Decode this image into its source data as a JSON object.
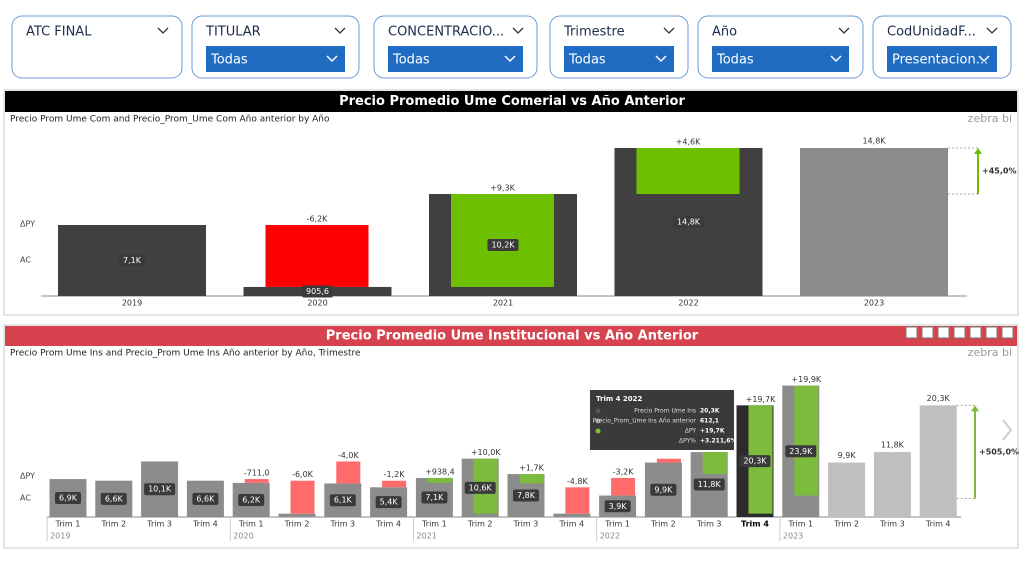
{
  "slicers": [
    {
      "title": "ATC FINAL"
    },
    {
      "title": "TITULAR",
      "value": "Todas"
    },
    {
      "title": "CONCENTRACIO...",
      "value": "Todas"
    },
    {
      "title": "Trimestre",
      "value": "Todas"
    },
    {
      "title": "Año",
      "value": "Todas"
    },
    {
      "title": "CodUnidadF...",
      "value": "Presentacion..."
    }
  ],
  "chart_data": [
    {
      "type": "variance-column",
      "title": "Precio Promedio Ume Comerial vs Año Anterior",
      "subtitle": "Precio Prom Ume Com and Precio_Prom_Ume Com Año anterior by Año",
      "logo": "zebra bi",
      "header_color": "#000000",
      "row_labels": [
        "ΔPY",
        "AC"
      ],
      "categories": [
        "2019",
        "2020",
        "2021",
        "2022",
        "2023"
      ],
      "values": [
        7100,
        905.6,
        10200,
        14800,
        14800
      ],
      "value_labels": [
        "7,1K",
        "905,6",
        "10,2K",
        "14,8K",
        "14,8K"
      ],
      "bar_styles": [
        "ac",
        "ac",
        "ac",
        "ac",
        "plan"
      ],
      "deltas": [
        null,
        -6200,
        9300,
        4600,
        null
      ],
      "delta_labels": [
        null,
        "-6,2K",
        "+9,3K",
        "+4,6K",
        null
      ],
      "total_variance": 45.0,
      "total_variance_label": "+45,0%",
      "colors": {
        "ac": "#404040",
        "highlight": "#262626",
        "plan": "#8c8c8c",
        "positive": "#6cc000",
        "negative": "#ff0000"
      }
    },
    {
      "type": "variance-column",
      "title": "Precio Promedio Ume Institucional vs Año Anterior",
      "subtitle": "Precio Prom Ume Ins and Precio_Prom Ume Ins Año anterior by Año, Trimestre",
      "logo": "zebra bi",
      "header_color": "#d6434f",
      "row_labels": [
        "ΔPY",
        "AC"
      ],
      "groups": [
        "2019",
        "2020",
        "2021",
        "2022",
        "2023"
      ],
      "categories": [
        "Trim 1",
        "Trim 2",
        "Trim 3",
        "Trim 4",
        "Trim 1",
        "Trim 2",
        "Trim 3",
        "Trim 4",
        "Trim 1",
        "Trim 2",
        "Trim 3",
        "Trim 4",
        "Trim 1",
        "Trim 2",
        "Trim 3",
        "Trim 4",
        "Trim 1",
        "Trim 2",
        "Trim 3",
        "Trim 4"
      ],
      "values": [
        6900,
        6600,
        10100,
        6600,
        6200,
        600,
        6100,
        5400,
        7100,
        10600,
        7800,
        612.1,
        3900,
        9900,
        11800,
        20300,
        23900,
        9900,
        11800,
        20300
      ],
      "value_labels": [
        "6,9K",
        "6,6K",
        "10,1K",
        "6,6K",
        "6,2K",
        null,
        "6,1K",
        "5,4K",
        "7,1K",
        "10,6K",
        "7,8K",
        null,
        "3,9K",
        "9,9K",
        "11,8K",
        "20,3K",
        "23,9K",
        "9,9K",
        "11,8K",
        "20,3K"
      ],
      "bar_styles": [
        "ac",
        "ac",
        "ac",
        "ac",
        "ac",
        "ac",
        "ac",
        "ac",
        "ac",
        "ac",
        "ac",
        "ac",
        "ac",
        "ac",
        "ac",
        "highlight",
        "ac",
        "plan",
        "plan",
        "plan"
      ],
      "deltas": [
        null,
        null,
        null,
        null,
        -711.0,
        -6000,
        -4000,
        -1200,
        938.4,
        10000,
        1700,
        -4800,
        -3200,
        -700,
        4000,
        19700,
        19900,
        null,
        null,
        null
      ],
      "delta_labels": [
        null,
        null,
        null,
        null,
        "-711,0",
        "-6,0K",
        "-4,0K",
        "-1,2K",
        "+938,4",
        "+10,0K",
        "+1,7K",
        "-4,8K",
        "-3,2K",
        null,
        null,
        "+19,7K",
        "+19,9K",
        null,
        null,
        null
      ],
      "total_variance": 505.0,
      "total_variance_label": "+505,0%",
      "colors": {
        "ac": "#8c8c8c",
        "highlight": "#2b2b2b",
        "plan": "#bfbfbf",
        "positive": "#7dbb3c",
        "negative": "#ff6b6b"
      },
      "tooltip": {
        "title": "Trim 4 2022",
        "rows": [
          {
            "label": "Precio Prom Ume Ins",
            "value": "20,3K"
          },
          {
            "label": "Precio_Prom_Ume Ins Año anterior",
            "value": "612,1"
          },
          {
            "label": "ΔPY",
            "value": "+19,7K"
          },
          {
            "label": "ΔPY%",
            "value": "+3.211,6%"
          }
        ]
      }
    }
  ]
}
